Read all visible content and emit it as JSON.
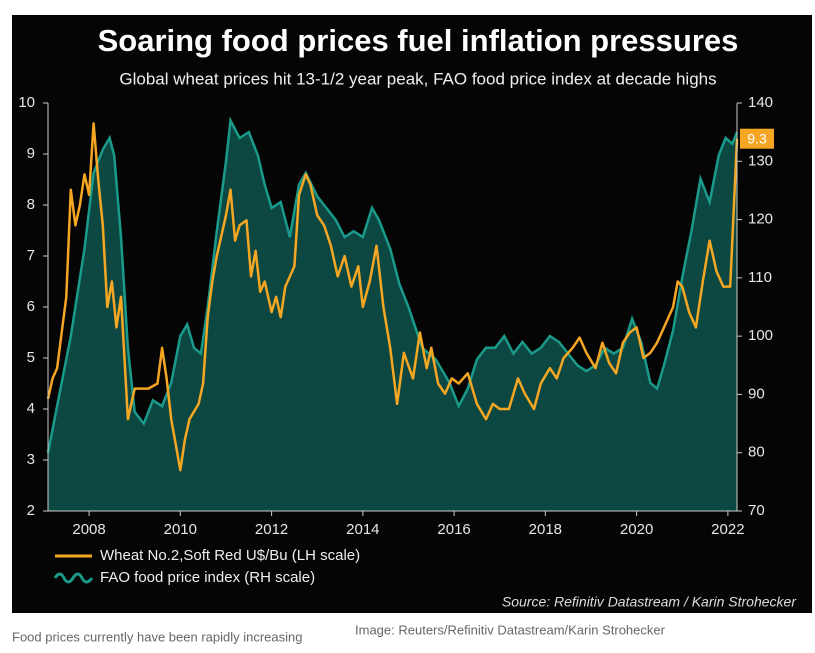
{
  "chart_data": {
    "type": "line",
    "title": "Soaring food prices fuel inflation pressures",
    "subtitle": "Global wheat prices hit 13-1/2 year peak, FAO food price index at decade highs",
    "source": "Source: Refinitiv Datastream / Karin Strohecker",
    "caption": "Food prices currently have been rapidly increasing",
    "credit": "Image: Reuters/Refinitiv Datastream/Karin Strohecker",
    "xlim": [
      2007.1,
      2022.2
    ],
    "xticks": [
      2008,
      2010,
      2012,
      2014,
      2016,
      2018,
      2020,
      2022
    ],
    "ylim": [
      2,
      10
    ],
    "yticks": [
      2,
      3,
      4,
      5,
      6,
      7,
      8,
      9,
      10
    ],
    "y2lim": [
      70,
      140
    ],
    "y2ticks": [
      70,
      80,
      90,
      100,
      110,
      120,
      130,
      140
    ],
    "series": [
      {
        "name": "Wheat No.2,Soft Red U$/Bu (LH scale)",
        "color": "#f5a623",
        "axis": "y",
        "x": [
          2007.1,
          2007.2,
          2007.3,
          2007.4,
          2007.5,
          2007.6,
          2007.7,
          2007.8,
          2007.9,
          2008.0,
          2008.1,
          2008.2,
          2008.3,
          2008.4,
          2008.5,
          2008.6,
          2008.7,
          2008.85,
          2009.0,
          2009.3,
          2009.5,
          2009.6,
          2009.7,
          2009.8,
          2009.9,
          2010.0,
          2010.1,
          2010.2,
          2010.4,
          2010.5,
          2010.6,
          2010.7,
          2010.8,
          2011.0,
          2011.1,
          2011.2,
          2011.3,
          2011.45,
          2011.55,
          2011.65,
          2011.75,
          2011.85,
          2012.0,
          2012.1,
          2012.2,
          2012.3,
          2012.5,
          2012.6,
          2012.75,
          2012.85,
          2013.0,
          2013.15,
          2013.3,
          2013.45,
          2013.6,
          2013.75,
          2013.9,
          2014.0,
          2014.15,
          2014.3,
          2014.45,
          2014.6,
          2014.75,
          2014.9,
          2015.1,
          2015.25,
          2015.4,
          2015.5,
          2015.65,
          2015.8,
          2015.95,
          2016.1,
          2016.3,
          2016.5,
          2016.7,
          2016.85,
          2017.0,
          2017.2,
          2017.4,
          2017.55,
          2017.75,
          2017.9,
          2018.1,
          2018.25,
          2018.4,
          2018.6,
          2018.75,
          2018.9,
          2019.1,
          2019.25,
          2019.4,
          2019.55,
          2019.7,
          2019.85,
          2020.0,
          2020.15,
          2020.3,
          2020.45,
          2020.6,
          2020.8,
          2020.9,
          2021.0,
          2021.15,
          2021.3,
          2021.45,
          2021.6,
          2021.75,
          2021.9,
          2022.05,
          2022.2
        ],
        "values": [
          4.2,
          4.6,
          4.8,
          5.5,
          6.2,
          8.3,
          7.6,
          8.0,
          8.6,
          8.2,
          9.6,
          8.5,
          7.6,
          6.0,
          6.5,
          5.6,
          6.2,
          3.8,
          4.4,
          4.4,
          4.5,
          5.2,
          4.6,
          3.8,
          3.3,
          2.8,
          3.4,
          3.8,
          4.1,
          4.5,
          5.8,
          6.5,
          7.0,
          7.8,
          8.3,
          7.3,
          7.6,
          7.7,
          6.6,
          7.1,
          6.3,
          6.5,
          5.9,
          6.2,
          5.8,
          6.4,
          6.8,
          8.2,
          8.6,
          8.4,
          7.8,
          7.6,
          7.2,
          6.6,
          7.0,
          6.4,
          6.8,
          6.0,
          6.5,
          7.2,
          6.0,
          5.2,
          4.1,
          5.1,
          4.6,
          5.5,
          4.8,
          5.2,
          4.5,
          4.3,
          4.6,
          4.5,
          4.7,
          4.1,
          3.8,
          4.1,
          4.0,
          4.0,
          4.6,
          4.3,
          4.0,
          4.5,
          4.8,
          4.6,
          5.0,
          5.2,
          5.4,
          5.1,
          4.8,
          5.3,
          4.9,
          4.7,
          5.3,
          5.5,
          5.6,
          5.0,
          5.1,
          5.3,
          5.6,
          6.0,
          6.5,
          6.4,
          5.9,
          5.6,
          6.5,
          7.3,
          6.7,
          6.4,
          6.4,
          9.3
        ]
      },
      {
        "name": "FAO food price index (RH scale)",
        "color": "#1a9a8a",
        "axis": "y2",
        "x": [
          2007.1,
          2007.3,
          2007.6,
          2007.9,
          2008.1,
          2008.3,
          2008.45,
          2008.55,
          2008.7,
          2008.85,
          2009.0,
          2009.2,
          2009.4,
          2009.6,
          2009.8,
          2010.0,
          2010.15,
          2010.3,
          2010.45,
          2010.6,
          2010.8,
          2011.0,
          2011.1,
          2011.3,
          2011.5,
          2011.7,
          2011.85,
          2012.0,
          2012.2,
          2012.4,
          2012.6,
          2012.75,
          2013.0,
          2013.2,
          2013.4,
          2013.6,
          2013.8,
          2014.0,
          2014.2,
          2014.35,
          2014.6,
          2014.8,
          2015.0,
          2015.3,
          2015.6,
          2015.9,
          2016.1,
          2016.3,
          2016.5,
          2016.7,
          2016.9,
          2017.1,
          2017.3,
          2017.5,
          2017.7,
          2017.9,
          2018.1,
          2018.3,
          2018.5,
          2018.7,
          2018.9,
          2019.1,
          2019.3,
          2019.5,
          2019.7,
          2019.9,
          2020.1,
          2020.3,
          2020.45,
          2020.6,
          2020.8,
          2021.0,
          2021.2,
          2021.4,
          2021.6,
          2021.8,
          2021.95,
          2022.1,
          2022.2
        ],
        "values": [
          80,
          88,
          100,
          115,
          128,
          132,
          134,
          131,
          117,
          98,
          87,
          85,
          89,
          88,
          92,
          100,
          102,
          98,
          97,
          105,
          118,
          130,
          137,
          134,
          135,
          131,
          126,
          122,
          123,
          117,
          126,
          128,
          124,
          122,
          120,
          117,
          118,
          117,
          122,
          120,
          115,
          109,
          105,
          98,
          96,
          92,
          88,
          91,
          96,
          98,
          98,
          100,
          97,
          99,
          97,
          98,
          100,
          99,
          97,
          95,
          94,
          95,
          98,
          97,
          98,
          103,
          99,
          92,
          91,
          95,
          101,
          110,
          118,
          127,
          123,
          131,
          134,
          133,
          135
        ]
      }
    ],
    "annotations": [
      {
        "x": 2022.2,
        "y": 9.3
      }
    ]
  }
}
